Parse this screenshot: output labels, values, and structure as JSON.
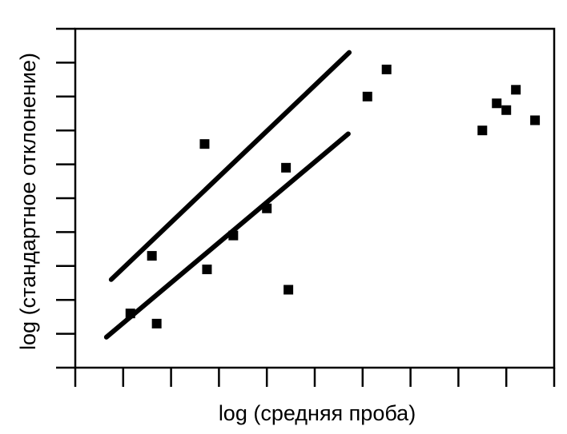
{
  "chart_data": {
    "type": "scatter",
    "title": "",
    "xlabel": "log (средняя проба)",
    "ylabel": "log (стандартное отклонение)",
    "xlim": [
      0,
      10
    ],
    "ylim": [
      0,
      10
    ],
    "x_ticks": [
      1,
      2,
      3,
      4,
      5,
      6,
      7,
      8,
      9,
      10
    ],
    "y_ticks": [
      1,
      2,
      3,
      4,
      5,
      6,
      7,
      8,
      9,
      10
    ],
    "tick_labels_shown": false,
    "grid": false,
    "series": [
      {
        "points": [
          {
            "x": 1.15,
            "y": 1.6
          },
          {
            "x": 1.6,
            "y": 3.3
          },
          {
            "x": 1.7,
            "y": 1.3
          },
          {
            "x": 2.7,
            "y": 6.6
          },
          {
            "x": 2.75,
            "y": 2.9
          },
          {
            "x": 3.3,
            "y": 3.9
          },
          {
            "x": 4.0,
            "y": 4.7
          },
          {
            "x": 4.4,
            "y": 5.9
          },
          {
            "x": 4.45,
            "y": 2.3
          },
          {
            "x": 6.1,
            "y": 8.0
          },
          {
            "x": 6.5,
            "y": 8.8
          },
          {
            "x": 8.5,
            "y": 7.0
          },
          {
            "x": 8.8,
            "y": 7.8
          },
          {
            "x": 9.0,
            "y": 7.6
          },
          {
            "x": 9.2,
            "y": 8.2
          },
          {
            "x": 9.6,
            "y": 7.3
          }
        ]
      }
    ],
    "trend_lines": [
      {
        "x": [
          0.75,
          5.72
        ],
        "y": [
          2.6,
          9.3
        ]
      },
      {
        "x": [
          0.65,
          5.7
        ],
        "y": [
          0.9,
          6.9
        ]
      }
    ],
    "colors": {
      "marker": "#000000",
      "line": "#000000",
      "axis": "#000000"
    }
  }
}
